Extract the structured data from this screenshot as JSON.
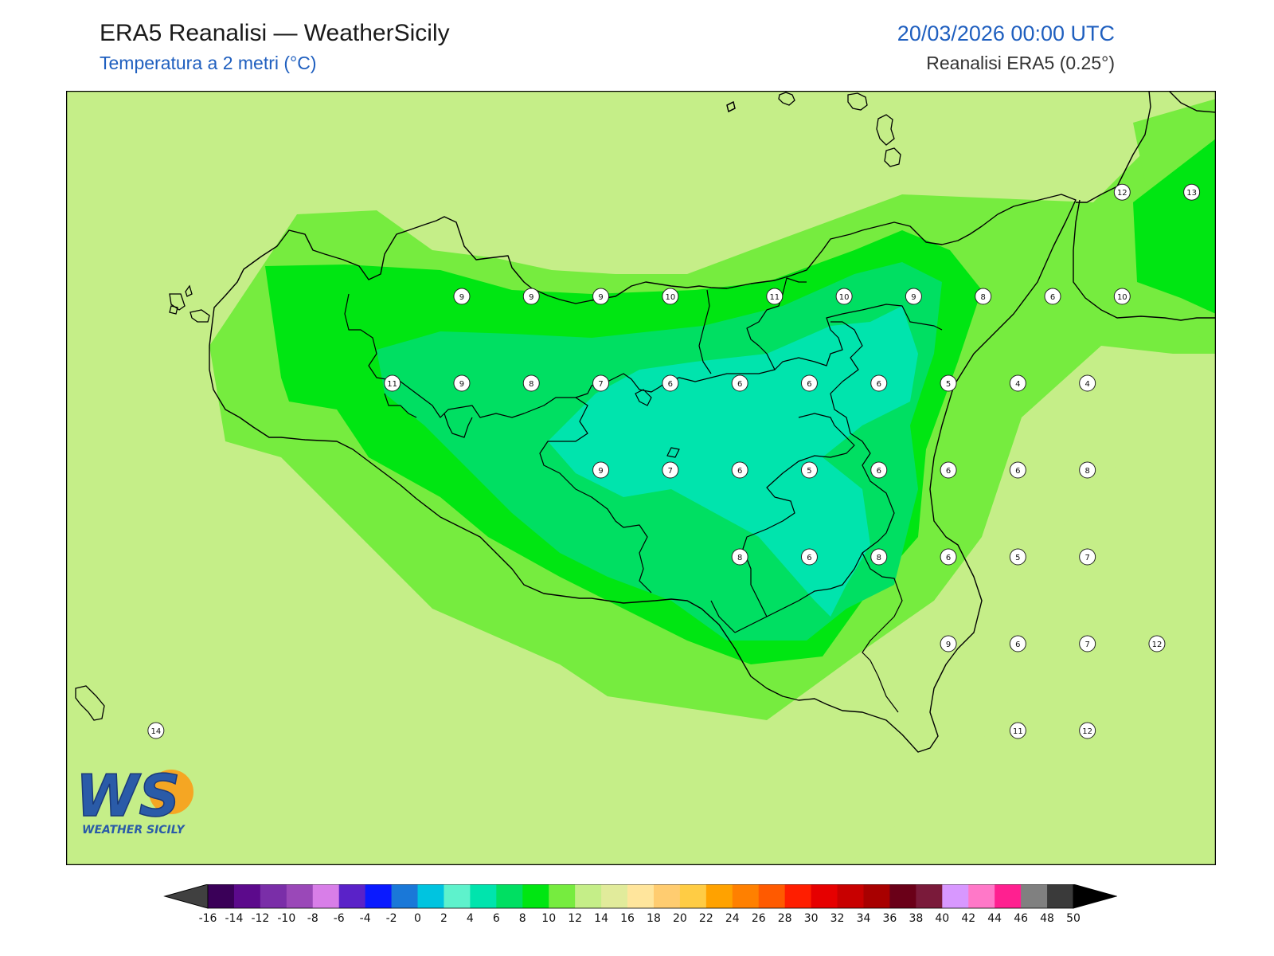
{
  "header": {
    "title": "ERA5 Reanalisi — WeatherSicily",
    "subtitle": "Temperatura a 2 metri (°C)",
    "datetime": "20/03/2026 00:00 UTC",
    "source": "Reanalisi ERA5 (0.25°)"
  },
  "logo": {
    "text_big": "WS",
    "text_small": "WEATHER SICILY"
  },
  "colors": {
    "band_14_16": "#e1eb9b",
    "band_12_14": "#c5ee88",
    "band_10_12": "#76ec3f",
    "band_8_10": "#00e612",
    "band_6_8": "#00df62",
    "band_4_6": "#00e4ad",
    "coast": "#000000",
    "title_blue": "#1f5fbf"
  },
  "stations": [
    {
      "value": 9,
      "lon": 12.6,
      "lat": 38.0
    },
    {
      "value": 9,
      "lon": 13.1,
      "lat": 38.0
    },
    {
      "value": 9,
      "lon": 13.6,
      "lat": 38.0
    },
    {
      "value": 10,
      "lon": 14.1,
      "lat": 38.0
    },
    {
      "value": 11,
      "lon": 14.85,
      "lat": 38.0
    },
    {
      "value": 10,
      "lon": 15.35,
      "lat": 38.0
    },
    {
      "value": 9,
      "lon": 15.85,
      "lat": 38.0
    },
    {
      "value": 8,
      "lon": 16.35,
      "lat": 38.0
    },
    {
      "value": 6,
      "lon": 16.85,
      "lat": 38.0
    },
    {
      "value": 10,
      "lon": 17.35,
      "lat": 38.0
    },
    {
      "value": 12,
      "lon": 17.35,
      "lat": 38.6
    },
    {
      "value": 13,
      "lon": 17.85,
      "lat": 38.6
    },
    {
      "value": 11,
      "lon": 12.1,
      "lat": 37.5
    },
    {
      "value": 9,
      "lon": 12.6,
      "lat": 37.5
    },
    {
      "value": 8,
      "lon": 13.1,
      "lat": 37.5
    },
    {
      "value": 7,
      "lon": 13.6,
      "lat": 37.5
    },
    {
      "value": 6,
      "lon": 14.1,
      "lat": 37.5
    },
    {
      "value": 6,
      "lon": 14.6,
      "lat": 37.5
    },
    {
      "value": 6,
      "lon": 15.1,
      "lat": 37.5
    },
    {
      "value": 6,
      "lon": 15.6,
      "lat": 37.5
    },
    {
      "value": 5,
      "lon": 16.1,
      "lat": 37.5
    },
    {
      "value": 4,
      "lon": 16.6,
      "lat": 37.5
    },
    {
      "value": 4,
      "lon": 17.1,
      "lat": 37.5
    },
    {
      "value": 9,
      "lon": 13.6,
      "lat": 37.0
    },
    {
      "value": 7,
      "lon": 14.1,
      "lat": 37.0
    },
    {
      "value": 6,
      "lon": 14.6,
      "lat": 37.0
    },
    {
      "value": 5,
      "lon": 15.1,
      "lat": 37.0
    },
    {
      "value": 6,
      "lon": 15.6,
      "lat": 37.0
    },
    {
      "value": 6,
      "lon": 16.1,
      "lat": 37.0
    },
    {
      "value": 6,
      "lon": 16.6,
      "lat": 37.0
    },
    {
      "value": 8,
      "lon": 17.1,
      "lat": 37.0
    },
    {
      "value": 8,
      "lon": 14.6,
      "lat": 36.5
    },
    {
      "value": 6,
      "lon": 15.1,
      "lat": 36.5
    },
    {
      "value": 8,
      "lon": 15.6,
      "lat": 36.5
    },
    {
      "value": 6,
      "lon": 16.1,
      "lat": 36.5
    },
    {
      "value": 5,
      "lon": 16.6,
      "lat": 36.5
    },
    {
      "value": 7,
      "lon": 17.1,
      "lat": 36.5
    },
    {
      "value": 9,
      "lon": 16.1,
      "lat": 36.0
    },
    {
      "value": 6,
      "lon": 16.6,
      "lat": 36.0
    },
    {
      "value": 7,
      "lon": 17.1,
      "lat": 36.0
    },
    {
      "value": 12,
      "lon": 17.6,
      "lat": 36.0
    },
    {
      "value": 14,
      "lon": 10.4,
      "lat": 35.5
    },
    {
      "value": 11,
      "lon": 16.6,
      "lat": 35.5
    },
    {
      "value": 12,
      "lon": 17.1,
      "lat": 35.5
    }
  ],
  "colorbar": {
    "ticks": [
      "-16",
      "-14",
      "-12",
      "-10",
      "-8",
      "-6",
      "-4",
      "-2",
      "0",
      "2",
      "4",
      "6",
      "8",
      "10",
      "12",
      "14",
      "16",
      "18",
      "20",
      "22",
      "24",
      "26",
      "28",
      "30",
      "32",
      "34",
      "36",
      "38",
      "40",
      "42",
      "44",
      "46",
      "48",
      "50"
    ],
    "colors": [
      "#3a0058",
      "#5c0a8c",
      "#7a2ea8",
      "#9a48b8",
      "#d87ee8",
      "#5a22c8",
      "#0a1aff",
      "#1a78d8",
      "#00c4e0",
      "#5ef2cc",
      "#00e4ad",
      "#00df62",
      "#00e612",
      "#76ec3f",
      "#c5ee88",
      "#e1eb9b",
      "#ffe59c",
      "#ffcc70",
      "#ffcc44",
      "#ffa200",
      "#ff8000",
      "#ff5a00",
      "#ff1e00",
      "#e60000",
      "#c80000",
      "#a80000",
      "#6a0018",
      "#7a1a3a",
      "#d898ff",
      "#ff78c8",
      "#ff2090",
      "#808080",
      "#3a3a3a"
    ],
    "under_color": "#404040",
    "over_color": "#000000"
  }
}
